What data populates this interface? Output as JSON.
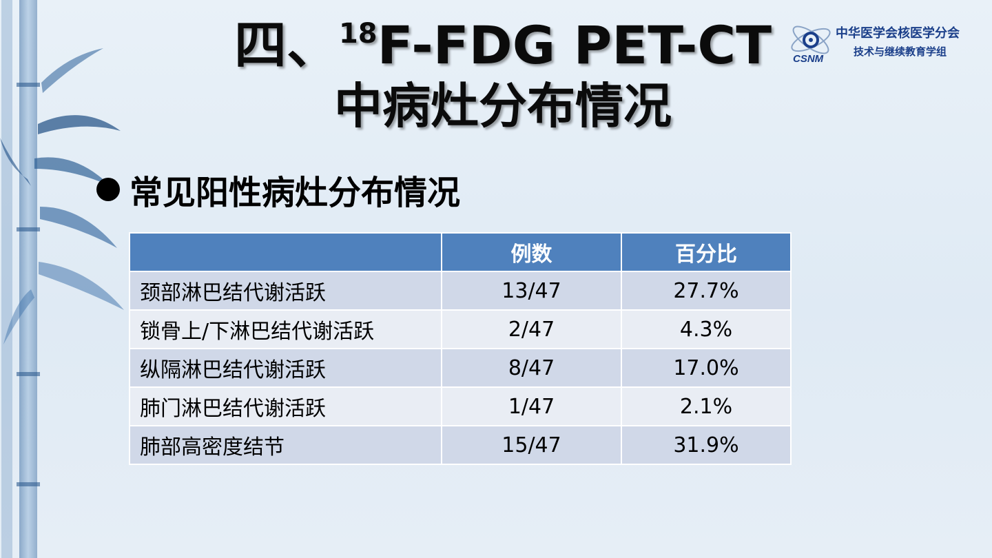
{
  "title": {
    "line1_prefix": "四、",
    "line1_sup": "18",
    "line1_rest": "F-FDG PET-CT",
    "line2": "中病灶分布情况"
  },
  "logo": {
    "org_name": "中华医学会核医学分会",
    "subtitle": "技术与继续教育学组",
    "mark_text": "CSNM"
  },
  "bullet": {
    "text": "常见阳性病灶分布情况"
  },
  "table": {
    "headers": [
      "",
      "例数",
      "百分比"
    ],
    "rows": [
      {
        "site": "颈部淋巴结代谢活跃",
        "count": "13/47",
        "percent": "27.7%"
      },
      {
        "site": "锁骨上/下淋巴结代谢活跃",
        "count": "2/47",
        "percent": "4.3%"
      },
      {
        "site": "纵隔淋巴结代谢活跃",
        "count": "8/47",
        "percent": "17.0%"
      },
      {
        "site": "肺门淋巴结代谢活跃",
        "count": "1/47",
        "percent": "2.1%"
      },
      {
        "site": "肺部高密度结节",
        "count": "15/47",
        "percent": "31.9%"
      }
    ]
  },
  "colors": {
    "header_bg": "#4f81bd",
    "row_odd": "#d0d8e8",
    "row_even": "#e9edf4",
    "logo_blue": "#1b3f8a"
  }
}
